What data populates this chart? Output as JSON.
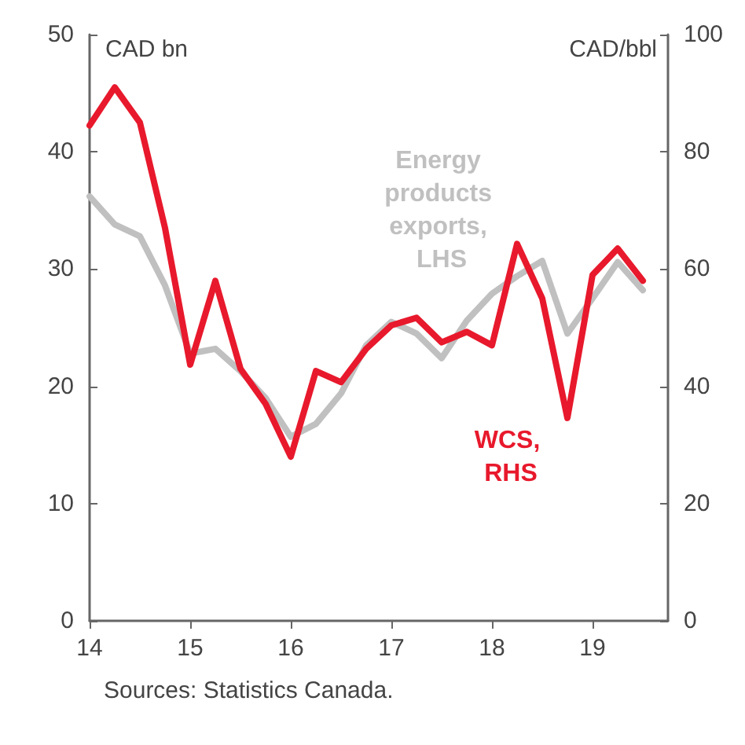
{
  "chart_data": {
    "type": "line",
    "ylabel": "CAD bn",
    "y2label": "CAD/bbl",
    "annotations": [
      "Sources: Statistics Canada."
    ],
    "x": [
      14,
      14.25,
      14.5,
      14.75,
      15,
      15.25,
      15.5,
      15.75,
      16,
      16.25,
      16.5,
      16.75,
      17,
      17.25,
      17.5,
      17.75,
      18,
      18.25,
      18.5,
      18.75,
      19,
      19.25,
      19.5
    ],
    "series": [
      {
        "name": "Energy products exports, LHS",
        "color": "#c0c0c0",
        "values": [
          36.2,
          33.8,
          32.8,
          28.6,
          22.8,
          23.2,
          21.3,
          19,
          15.7,
          16.8,
          19.4,
          23.5,
          25.5,
          24.5,
          22.4,
          25.6,
          27.9,
          29.4,
          30.7,
          24.5,
          27.5,
          30.6,
          28.2
        ]
      },
      {
        "name": "WCS, RHS",
        "color": "#e8192c",
        "axis": "y2",
        "values": [
          84.5,
          91,
          85,
          67,
          43.7,
          58,
          43,
          37,
          28,
          42.6,
          40.7,
          46.4,
          50.4,
          51.7,
          47.5,
          49.3,
          47,
          64.3,
          55,
          34.6,
          59,
          63.5,
          58
        ]
      }
    ],
    "xlim": [
      14,
      19.75
    ],
    "xticks": [
      14,
      15,
      16,
      17,
      18,
      19
    ],
    "ylim": [
      0,
      50
    ],
    "yticks": [
      0,
      10,
      20,
      30,
      40,
      50
    ],
    "y2lim": [
      0,
      100
    ],
    "y2ticks": [
      0,
      20,
      40,
      60,
      80,
      100
    ],
    "legend": false,
    "grid": false,
    "marker": "none",
    "line_style": "solid"
  }
}
